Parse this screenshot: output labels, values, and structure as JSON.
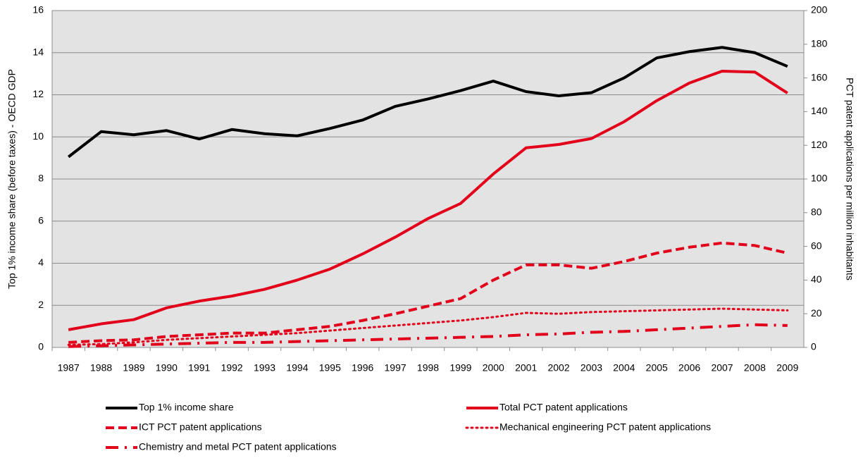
{
  "chart_data": {
    "type": "line",
    "y_label": "Top 1% income share (before taxes) - OECD GDP",
    "y2_label": "PCT patent applications per million inhabitants",
    "categories": [
      "1987",
      "1988",
      "1989",
      "1990",
      "1991",
      "1992",
      "1993",
      "1994",
      "1995",
      "1996",
      "1997",
      "1998",
      "1999",
      "2000",
      "2001",
      "2002",
      "2003",
      "2004",
      "2005",
      "2006",
      "2007",
      "2008",
      "2009"
    ],
    "ylim": [
      0,
      16
    ],
    "yticks": [
      0,
      2,
      4,
      6,
      8,
      10,
      12,
      14,
      16
    ],
    "y2lim": [
      0,
      200
    ],
    "y2ticks": [
      0,
      20,
      40,
      60,
      80,
      100,
      120,
      140,
      160,
      180,
      200
    ],
    "grid": true,
    "legend": "bottom",
    "series": [
      {
        "name": "Top 1% income share",
        "color": "#000000",
        "style": "solid",
        "values": [
          9.05,
          10.25,
          10.1,
          10.3,
          9.9,
          10.35,
          10.15,
          10.05,
          10.4,
          10.8,
          11.45,
          11.8,
          12.2,
          12.65,
          12.15,
          11.95,
          12.1,
          12.8,
          13.75,
          14.05,
          14.25,
          14.0,
          13.35
        ]
      },
      {
        "name": "Total PCT patent applications",
        "color": "#e2001a",
        "style": "solid",
        "axis": "y2",
        "values": [
          10.5,
          14,
          16.5,
          23.5,
          27.5,
          30.5,
          34.5,
          40,
          46.5,
          55.5,
          65.5,
          76.5,
          85.5,
          103,
          118.5,
          120.5,
          124,
          134,
          146.5,
          157,
          164,
          163.5,
          151
        ]
      },
      {
        "name": "ICT PCT patent applications",
        "color": "#e2001a",
        "style": "dashed",
        "axis": "y2",
        "values": [
          3,
          4,
          4.5,
          6.5,
          7.5,
          8.5,
          8.5,
          10.5,
          12.5,
          16,
          20,
          24.5,
          29,
          40,
          49,
          49,
          47,
          51,
          56,
          59.5,
          62,
          60.5,
          56
        ]
      },
      {
        "name": "Mechanical engineering PCT patent applications",
        "color": "#e2001a",
        "style": "dotted",
        "axis": "y2",
        "values": [
          1.5,
          2,
          3,
          4.5,
          5.5,
          6.5,
          7.5,
          8.5,
          10,
          11.5,
          13,
          14.5,
          16,
          18,
          20.5,
          20,
          21,
          21.5,
          22,
          22.5,
          23,
          22.5,
          22
        ]
      },
      {
        "name": "Chemistry and metal PCT patent applications",
        "color": "#e2001a",
        "style": "dashdot",
        "axis": "y2",
        "values": [
          0.5,
          1,
          1.5,
          2,
          2.5,
          3,
          3,
          3.5,
          4,
          4.5,
          5,
          5.5,
          6,
          6.5,
          7.5,
          8,
          9,
          9.5,
          10.5,
          11.5,
          12.5,
          13.5,
          13
        ]
      }
    ]
  }
}
